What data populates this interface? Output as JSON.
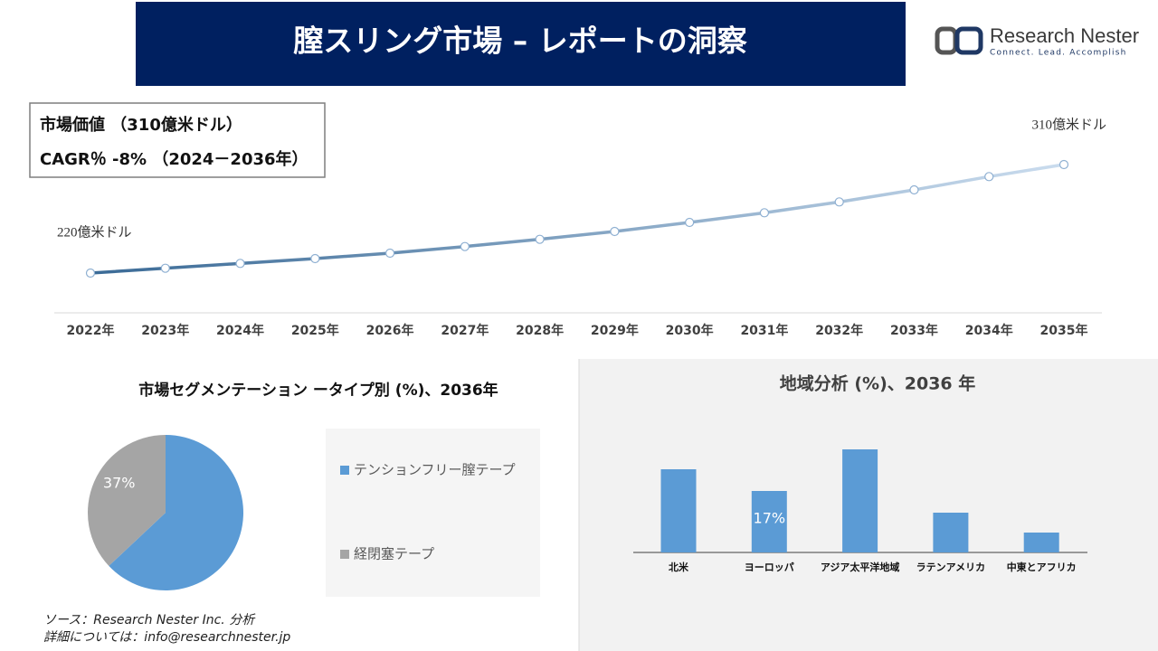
{
  "header": {
    "title": "膣スリング市場 – レポートの洞察"
  },
  "logo": {
    "name": "Research Nester",
    "tagline": "Connect. Lead. Accomplish"
  },
  "kpi": {
    "market_value": "市場価値 （310億米ドル）",
    "cagr": "CAGR％ -8% （2024－2036年）"
  },
  "chart_data": [
    {
      "type": "line",
      "categories": [
        "2022年",
        "2023年",
        "2024年",
        "2025年",
        "2026年",
        "2027年",
        "2028年",
        "2029年",
        "2030年",
        "2031年",
        "2032年",
        "2033年",
        "2034年",
        "2035年"
      ],
      "values": [
        220,
        224,
        228,
        232,
        236.5,
        242,
        248,
        254.5,
        262,
        270,
        279,
        289,
        300,
        310
      ],
      "value_labels": [
        "220億米ドル",
        null,
        null,
        null,
        null,
        null,
        null,
        null,
        null,
        null,
        null,
        null,
        null,
        "310億米ドル"
      ],
      "colors": [
        "#3a6a96",
        "#cadcee"
      ]
    },
    {
      "type": "pie",
      "title": "市場セグメンテーション ータイプ別 (%)、2036年",
      "categories": [
        "テンションフリー膣テープ",
        "経閉塞テープ"
      ],
      "values": [
        63,
        37
      ],
      "value_labels": [
        null,
        "37%"
      ],
      "colors": [
        "#5b9bd5",
        "#a5a5a5"
      ]
    },
    {
      "type": "bar",
      "title": "地域分析 (%)、2036 年",
      "categories": [
        "北米",
        "ヨーロッパ",
        "アジア太平洋地域",
        "ラテンアメリカ",
        "中東とアフリカ"
      ],
      "values": [
        23,
        17,
        28.5,
        11,
        5.5
      ],
      "value_labels": [
        null,
        "17%",
        null,
        null,
        null
      ],
      "color": "#5b9bd5"
    }
  ],
  "footer": {
    "source": "ソース：Research Nester Inc. 分析",
    "contact": "詳細については：info@researchnester.jp"
  }
}
